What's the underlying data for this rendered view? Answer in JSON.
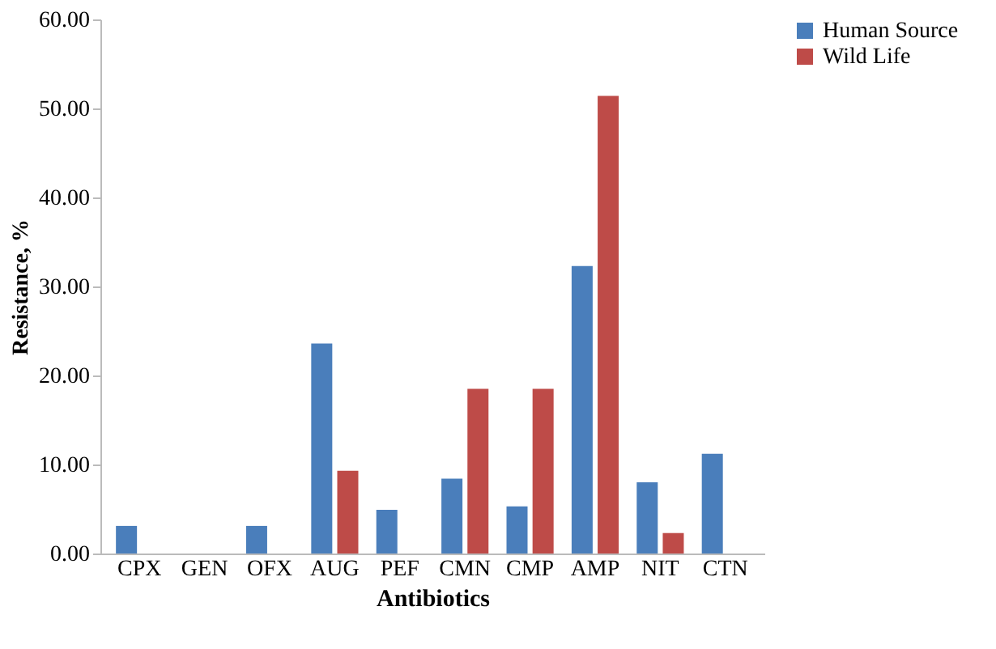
{
  "chart_data": {
    "type": "bar",
    "xlabel": "Antibiotics",
    "ylabel": "Resistance, %",
    "categories": [
      "CPX",
      "GEN",
      "OFX",
      "AUG",
      "PEF",
      "CMN",
      "CMP",
      "AMP",
      "NIT",
      "CTN"
    ],
    "series": [
      {
        "name": "Human Source",
        "color": "#4a7ebb",
        "values": [
          3.1,
          0,
          3.1,
          23.6,
          4.9,
          8.4,
          5.3,
          32.3,
          8.0,
          11.2
        ]
      },
      {
        "name": "Wild Life",
        "color": "#be4b48",
        "values": [
          0,
          0,
          0,
          9.3,
          0,
          18.5,
          18.5,
          51.4,
          2.3,
          0
        ]
      }
    ],
    "ylim": [
      0,
      60
    ],
    "yticks": [
      {
        "value": 0,
        "label": "0.00"
      },
      {
        "value": 10,
        "label": "10.00"
      },
      {
        "value": 20,
        "label": "20.00"
      },
      {
        "value": 30,
        "label": "30.00"
      },
      {
        "value": 40,
        "label": "40.00"
      },
      {
        "value": 50,
        "label": "50.00"
      },
      {
        "value": 60,
        "label": "60.00"
      }
    ],
    "grid": false,
    "legend": "top right"
  }
}
